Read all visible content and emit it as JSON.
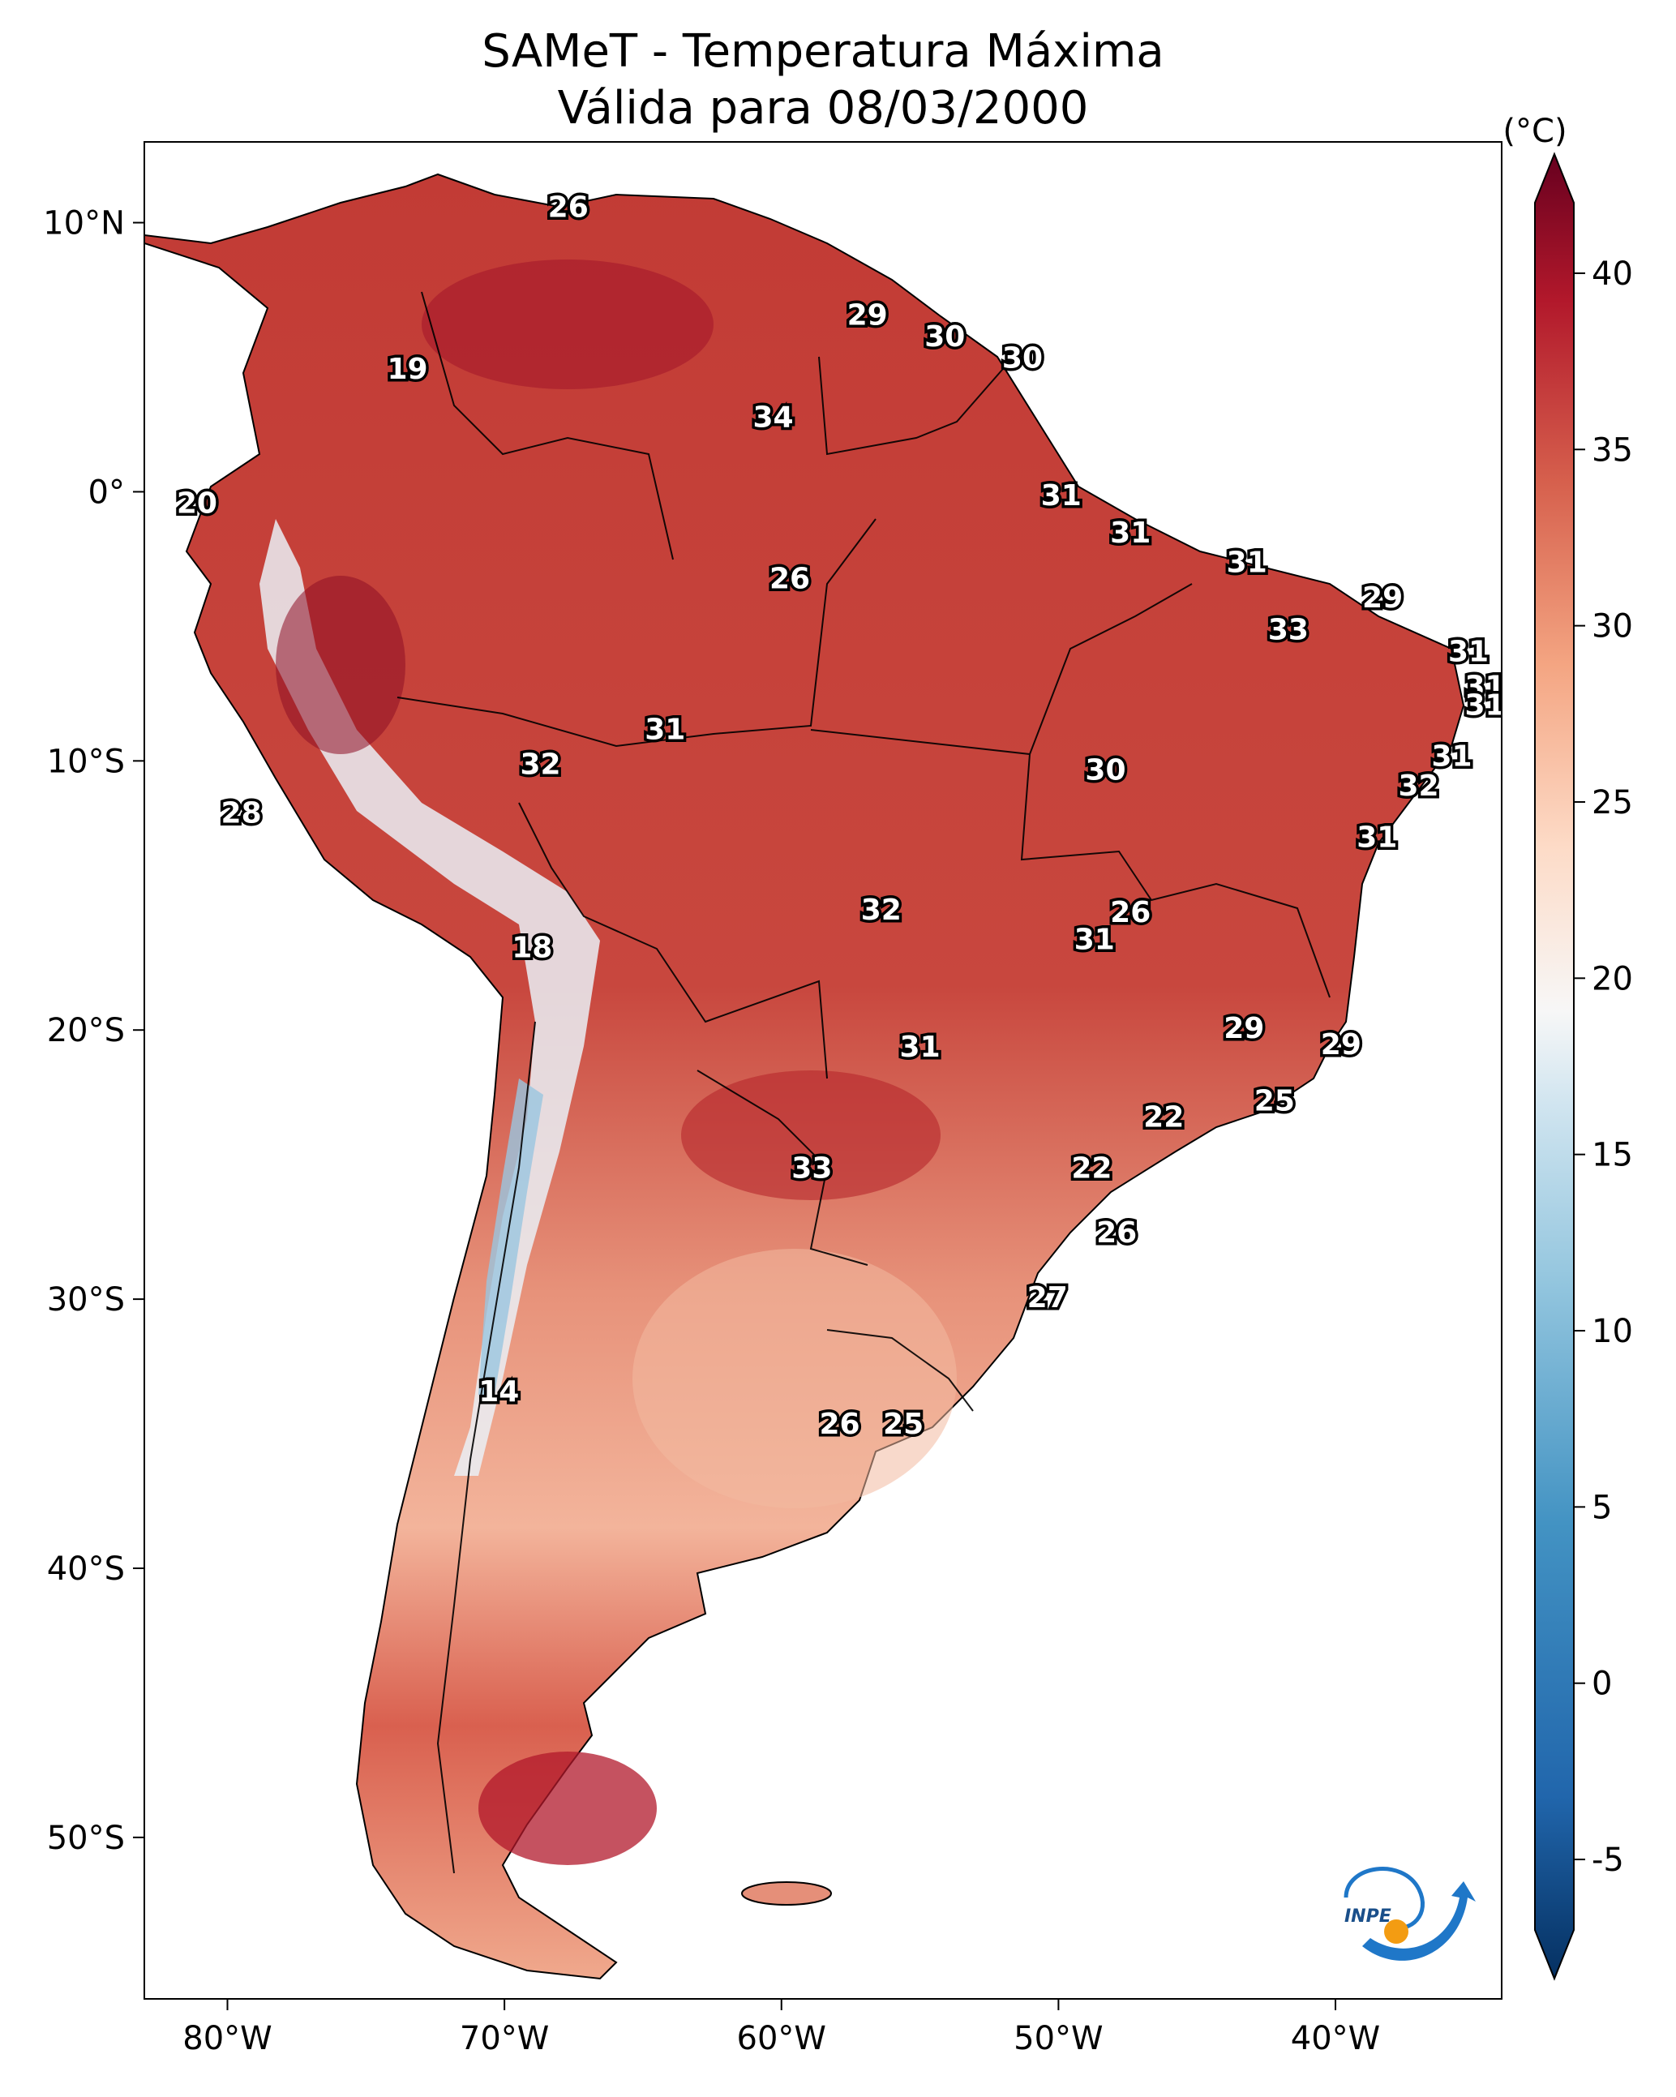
{
  "title": {
    "line1": "SAMeT - Temperatura Máxima",
    "line2": "Válida para 08/03/2000"
  },
  "map": {
    "extent": {
      "lon_min": -83,
      "lon_max": -34,
      "lat_min": -56,
      "lat_max": 13
    },
    "lat_ticks": [
      {
        "value": 10,
        "label": "10°N"
      },
      {
        "value": 0,
        "label": "0°"
      },
      {
        "value": -10,
        "label": "10°S"
      },
      {
        "value": -20,
        "label": "20°S"
      },
      {
        "value": -30,
        "label": "30°S"
      },
      {
        "value": -40,
        "label": "40°S"
      },
      {
        "value": -50,
        "label": "50°S"
      }
    ],
    "lon_ticks": [
      {
        "value": -80,
        "label": "80°W"
      },
      {
        "value": -70,
        "label": "70°W"
      },
      {
        "value": -60,
        "label": "60°W"
      },
      {
        "value": -50,
        "label": "50°W"
      },
      {
        "value": -40,
        "label": "40°W"
      }
    ],
    "contour_labels": [
      {
        "lon": -67.7,
        "lat": 10.6,
        "text": "26"
      },
      {
        "lon": -56.9,
        "lat": 6.6,
        "text": "29"
      },
      {
        "lon": -54.1,
        "lat": 5.8,
        "text": "30"
      },
      {
        "lon": -51.3,
        "lat": 5.0,
        "text": "30"
      },
      {
        "lon": -73.5,
        "lat": 4.6,
        "text": "19"
      },
      {
        "lon": -60.3,
        "lat": 2.8,
        "text": "34"
      },
      {
        "lon": -49.9,
        "lat": -0.1,
        "text": "31"
      },
      {
        "lon": -81.1,
        "lat": -0.4,
        "text": "20"
      },
      {
        "lon": -47.4,
        "lat": -1.5,
        "text": "31"
      },
      {
        "lon": -43.2,
        "lat": -2.6,
        "text": "31"
      },
      {
        "lon": -59.7,
        "lat": -3.2,
        "text": "26"
      },
      {
        "lon": -38.3,
        "lat": -3.9,
        "text": "29"
      },
      {
        "lon": -41.7,
        "lat": -5.1,
        "text": "33"
      },
      {
        "lon": -35.2,
        "lat": -5.9,
        "text": "31"
      },
      {
        "lon": -34.6,
        "lat": -7.2,
        "text": "31"
      },
      {
        "lon": -34.6,
        "lat": -7.9,
        "text": "31"
      },
      {
        "lon": -64.2,
        "lat": -8.8,
        "text": "31"
      },
      {
        "lon": -68.7,
        "lat": -10.1,
        "text": "32"
      },
      {
        "lon": -35.8,
        "lat": -9.8,
        "text": "31"
      },
      {
        "lon": -48.3,
        "lat": -10.3,
        "text": "30"
      },
      {
        "lon": -37.0,
        "lat": -10.9,
        "text": "32"
      },
      {
        "lon": -79.5,
        "lat": -11.9,
        "text": "28"
      },
      {
        "lon": -38.5,
        "lat": -12.8,
        "text": "31"
      },
      {
        "lon": -47.4,
        "lat": -15.6,
        "text": "26"
      },
      {
        "lon": -56.4,
        "lat": -15.5,
        "text": "32"
      },
      {
        "lon": -48.7,
        "lat": -16.6,
        "text": "31"
      },
      {
        "lon": -69.0,
        "lat": -16.9,
        "text": "18"
      },
      {
        "lon": -43.3,
        "lat": -19.9,
        "text": "29"
      },
      {
        "lon": -55.0,
        "lat": -20.6,
        "text": "31"
      },
      {
        "lon": -39.8,
        "lat": -20.5,
        "text": "29"
      },
      {
        "lon": -42.2,
        "lat": -22.6,
        "text": "25"
      },
      {
        "lon": -46.2,
        "lat": -23.2,
        "text": "22"
      },
      {
        "lon": -58.9,
        "lat": -25.1,
        "text": "33"
      },
      {
        "lon": -48.8,
        "lat": -25.1,
        "text": "22"
      },
      {
        "lon": -47.9,
        "lat": -27.5,
        "text": "26"
      },
      {
        "lon": -50.4,
        "lat": -29.9,
        "text": "27"
      },
      {
        "lon": -70.2,
        "lat": -33.4,
        "text": "14"
      },
      {
        "lon": -57.9,
        "lat": -34.6,
        "text": "26"
      },
      {
        "lon": -55.6,
        "lat": -34.6,
        "text": "25"
      }
    ]
  },
  "colorbar": {
    "units": "(°C)",
    "min": -7,
    "max": 42,
    "extend": "both",
    "ticks": [
      {
        "value": 40,
        "label": "40"
      },
      {
        "value": 35,
        "label": "35"
      },
      {
        "value": 30,
        "label": "30"
      },
      {
        "value": 25,
        "label": "25"
      },
      {
        "value": 20,
        "label": "20"
      },
      {
        "value": 15,
        "label": "15"
      },
      {
        "value": 10,
        "label": "10"
      },
      {
        "value": 5,
        "label": "5"
      },
      {
        "value": 0,
        "label": "0"
      },
      {
        "value": -5,
        "label": "-5"
      }
    ],
    "colormap": "RdBu_r"
  },
  "logo": {
    "text": "INPE",
    "colors": {
      "blue": "#1f77c8",
      "orange": "#f39c12"
    }
  }
}
